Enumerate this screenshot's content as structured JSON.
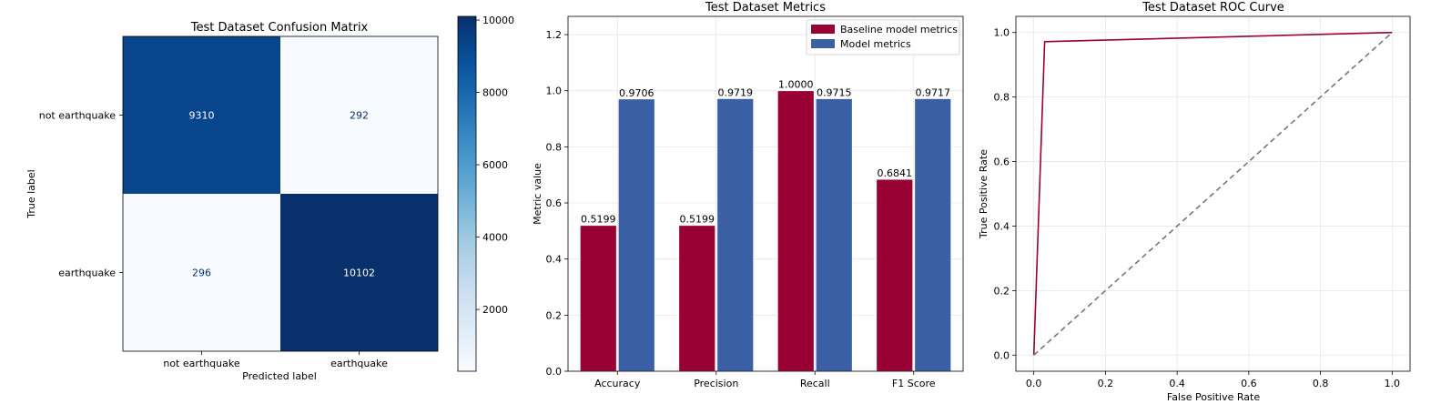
{
  "chart_data": [
    {
      "type": "heatmap",
      "title": "Test Dataset Confusion Matrix",
      "xlabel": "Predicted label",
      "ylabel": "True label",
      "x_categories": [
        "not earthquake",
        "earthquake"
      ],
      "y_categories": [
        "not earthquake",
        "earthquake"
      ],
      "values": [
        [
          9310,
          292
        ],
        [
          296,
          10102
        ]
      ],
      "colormap": "Blues",
      "colorbar": {
        "range": [
          292,
          10102
        ],
        "ticks": [
          2000,
          4000,
          6000,
          8000,
          10000
        ]
      }
    },
    {
      "type": "bar",
      "title": "Test Dataset Metrics",
      "xlabel": "",
      "ylabel": "Metric value",
      "categories": [
        "Accuracy",
        "Precision",
        "Recall",
        "F1 Score"
      ],
      "series": [
        {
          "name": "Baseline model metrics",
          "color": "#990033",
          "values": [
            0.5199,
            0.5199,
            1.0,
            0.6841
          ],
          "labels": [
            "0.5199",
            "0.5199",
            "1.0000",
            "0.6841"
          ]
        },
        {
          "name": "Model metrics",
          "color": "#3a5fa5",
          "values": [
            0.9706,
            0.9719,
            0.9715,
            0.9717
          ],
          "labels": [
            "0.9706",
            "0.9719",
            "0.9715",
            "0.9717"
          ]
        }
      ],
      "ylim": [
        0,
        1.265
      ],
      "yticks": [
        0.0,
        0.2,
        0.4,
        0.6,
        0.8,
        1.0,
        1.2
      ],
      "grid": true,
      "legend": "top-right"
    },
    {
      "type": "line",
      "title": "Test Dataset ROC Curve",
      "xlabel": "False Positive Rate",
      "ylabel": "True Positive Rate",
      "series": [
        {
          "color": "#990033",
          "style": "solid",
          "x": [
            0.0,
            0.0304,
            1.0
          ],
          "y": [
            0.0,
            0.9715,
            1.0
          ]
        },
        {
          "color": "#777777",
          "style": "dashed",
          "x": [
            0.0,
            1.0
          ],
          "y": [
            0.0,
            1.0
          ]
        }
      ],
      "xlim": [
        -0.05,
        1.05
      ],
      "ylim": [
        -0.05,
        1.05
      ],
      "xticks": [
        0.0,
        0.2,
        0.4,
        0.6,
        0.8,
        1.0
      ],
      "yticks": [
        0.0,
        0.2,
        0.4,
        0.6,
        0.8,
        1.0
      ],
      "grid": true
    }
  ]
}
